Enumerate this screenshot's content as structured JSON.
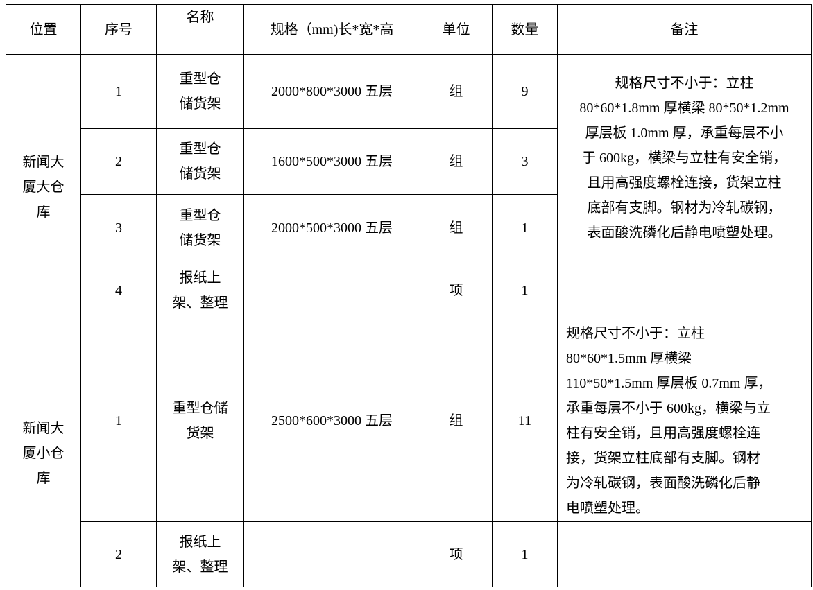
{
  "headers": [
    "位置",
    "序号",
    "名称",
    "规格（mm)长*宽*高",
    "单位",
    "数量",
    "备注"
  ],
  "groups": [
    {
      "location": "新闻大\n厦大仓\n库",
      "rows": [
        {
          "no": "1",
          "name": "重型仓\n储货架",
          "spec": "2000*800*3000 五层",
          "unit": "组",
          "qty": "9"
        },
        {
          "no": "2",
          "name": "重型仓\n储货架",
          "spec": "1600*500*3000 五层",
          "unit": "组",
          "qty": "3"
        },
        {
          "no": "3",
          "name": "重型仓\n储货架",
          "spec": "2000*500*3000 五层",
          "unit": "组",
          "qty": "1"
        },
        {
          "no": "4",
          "name": "报纸上\n架、整理",
          "spec": "",
          "unit": "项",
          "qty": "1",
          "remark": ""
        }
      ],
      "remark": "规格尺寸不小于：立柱\n80*60*1.8mm 厚横梁 80*50*1.2mm\n厚层板 1.0mm 厚，承重每层不小\n于 600kg，横梁与立柱有安全销，\n且用高强度螺栓连接，货架立柱\n底部有支脚。钢材为冷轧碳钢，\n表面酸洗磷化后静电喷塑处理。"
    },
    {
      "location": "新闻大\n厦小仓\n库",
      "rows": [
        {
          "no": "1",
          "name": "重型仓储\n货架",
          "spec": "2500*600*3000 五层",
          "unit": "组",
          "qty": "11",
          "remark": "规格尺寸不小于：立柱\n80*60*1.5mm 厚横梁\n110*50*1.5mm 厚层板 0.7mm 厚，\n承重每层不小于 600kg，横梁与立\n柱有安全销，且用高强度螺栓连\n接，货架立柱底部有支脚。钢材\n为冷轧碳钢，表面酸洗磷化后静\n电喷塑处理。"
        },
        {
          "no": "2",
          "name": "报纸上\n架、整理",
          "spec": "",
          "unit": "项",
          "qty": "1",
          "remark": ""
        }
      ]
    }
  ]
}
